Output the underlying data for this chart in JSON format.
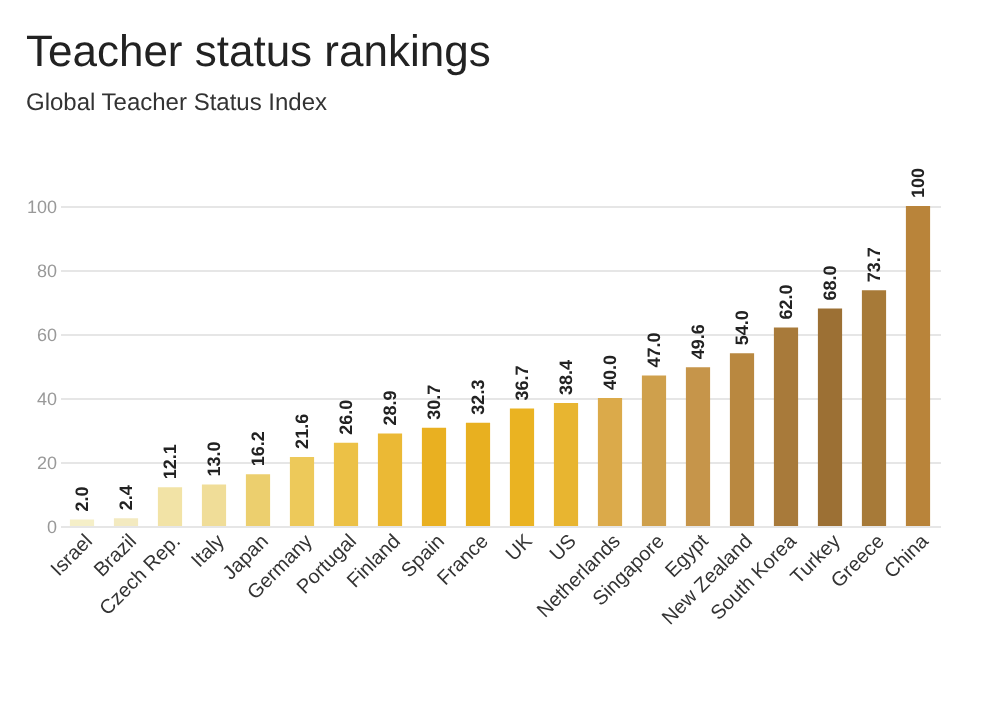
{
  "chart_data": {
    "type": "bar",
    "title": "Teacher status rankings",
    "subtitle": "Global Teacher Status Index",
    "categories": [
      "Israel",
      "Brazil",
      "Czech Rep.",
      "Italy",
      "Japan",
      "Germany",
      "Portugal",
      "Finland",
      "Spain",
      "France",
      "UK",
      "US",
      "Netherlands",
      "Singapore",
      "Egypt",
      "New Zealand",
      "South Korea",
      "Turkey",
      "Greece",
      "China"
    ],
    "values": [
      2.0,
      2.4,
      12.1,
      13.0,
      16.2,
      21.6,
      26.0,
      28.9,
      30.7,
      32.3,
      36.7,
      38.4,
      40.0,
      47.0,
      49.6,
      54.0,
      62.0,
      68.0,
      73.7,
      100
    ],
    "colors": [
      "#f5efc8",
      "#f3eac0",
      "#f2e3a6",
      "#f0dd98",
      "#eccf6e",
      "#edc95a",
      "#ecc146",
      "#ebb935",
      "#e9b021",
      "#e8b020",
      "#eab322",
      "#e8b530",
      "#dbaa4a",
      "#cfa04c",
      "#c6954a",
      "#b98840",
      "#a87a3a",
      "#9c7034",
      "#a77a38",
      "#b9843a"
    ],
    "value_labels": [
      "2.0",
      "2.4",
      "12.1",
      "13.0",
      "16.2",
      "21.6",
      "26.0",
      "28.9",
      "30.7",
      "32.3",
      "36.7",
      "38.4",
      "40.0",
      "47.0",
      "49.6",
      "54.0",
      "62.0",
      "68.0",
      "73.7",
      "100"
    ],
    "ylim": [
      0,
      100
    ],
    "yticks": [
      0,
      20,
      40,
      60,
      80,
      100
    ],
    "grid": "y"
  }
}
